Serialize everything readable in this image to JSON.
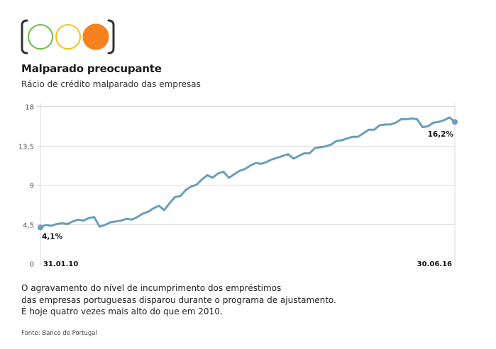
{
  "header": {
    "title": "Malparado preocupante",
    "subtitle": "Rácio de crédito malparado das empresas"
  },
  "traffic_light": {
    "lights": [
      {
        "name": "green-light",
        "color": "#6dbb4a",
        "filled": false
      },
      {
        "name": "yellow-light",
        "color": "#f2c21b",
        "filled": false
      },
      {
        "name": "orange-light",
        "color": "#f5821f",
        "filled": true
      }
    ],
    "bracket_color": "#333333"
  },
  "colors": {
    "line": "#6a9ebb",
    "grid": "#d9d9d9",
    "marker": "#6a9ebb"
  },
  "chart_data": {
    "type": "line",
    "title": "Malparado preocupante",
    "subtitle": "Rácio de crédito malparado das empresas",
    "xlabel": "",
    "ylabel": "",
    "ylim": [
      0,
      18
    ],
    "yticks": [
      "18",
      "13,5",
      "9",
      "4,5",
      "0"
    ],
    "ytick_values": [
      18,
      13.5,
      9,
      4.5,
      0
    ],
    "xticks": [
      "31.01.10",
      "30.06.16"
    ],
    "grid": true,
    "series": [
      {
        "values": [
          4.1,
          4.4,
          4.3,
          4.5,
          4.6,
          4.5,
          4.8,
          5.0,
          4.9,
          5.2,
          5.3,
          4.2,
          4.4,
          4.7,
          4.8,
          4.9,
          5.1,
          5.0,
          5.3,
          5.7,
          5.9,
          6.3,
          6.6,
          6.1,
          6.9,
          7.6,
          7.7,
          8.4,
          8.8,
          9.0,
          9.6,
          10.1,
          9.8,
          10.3,
          10.5,
          9.8,
          10.2,
          10.6,
          10.8,
          11.2,
          11.5,
          11.4,
          11.6,
          11.9,
          12.1,
          12.3,
          12.5,
          12.0,
          12.3,
          12.6,
          12.6,
          13.2,
          13.3,
          13.4,
          13.6,
          14.0,
          14.1,
          14.3,
          14.5,
          14.5,
          14.9,
          15.3,
          15.3,
          15.8,
          15.9,
          15.9,
          16.1,
          16.5,
          16.5,
          16.6,
          16.5,
          15.6,
          15.7,
          16.1,
          16.2,
          16.4,
          16.7,
          16.2
        ]
      }
    ],
    "annotations": [
      {
        "text": "4,1%",
        "value": 4.1,
        "point": "first"
      },
      {
        "text": "16,2%",
        "value": 16.2,
        "point": "last"
      }
    ]
  },
  "note": {
    "lines": [
      "O agravamento do nível de incumprimento dos empréstimos",
      "das empresas portuguesas disparou durante o programa de ajustamento.",
      "É hoje quatro vezes mais alto do que em 2010."
    ]
  },
  "source": "Fonte: Banco de Portugal"
}
